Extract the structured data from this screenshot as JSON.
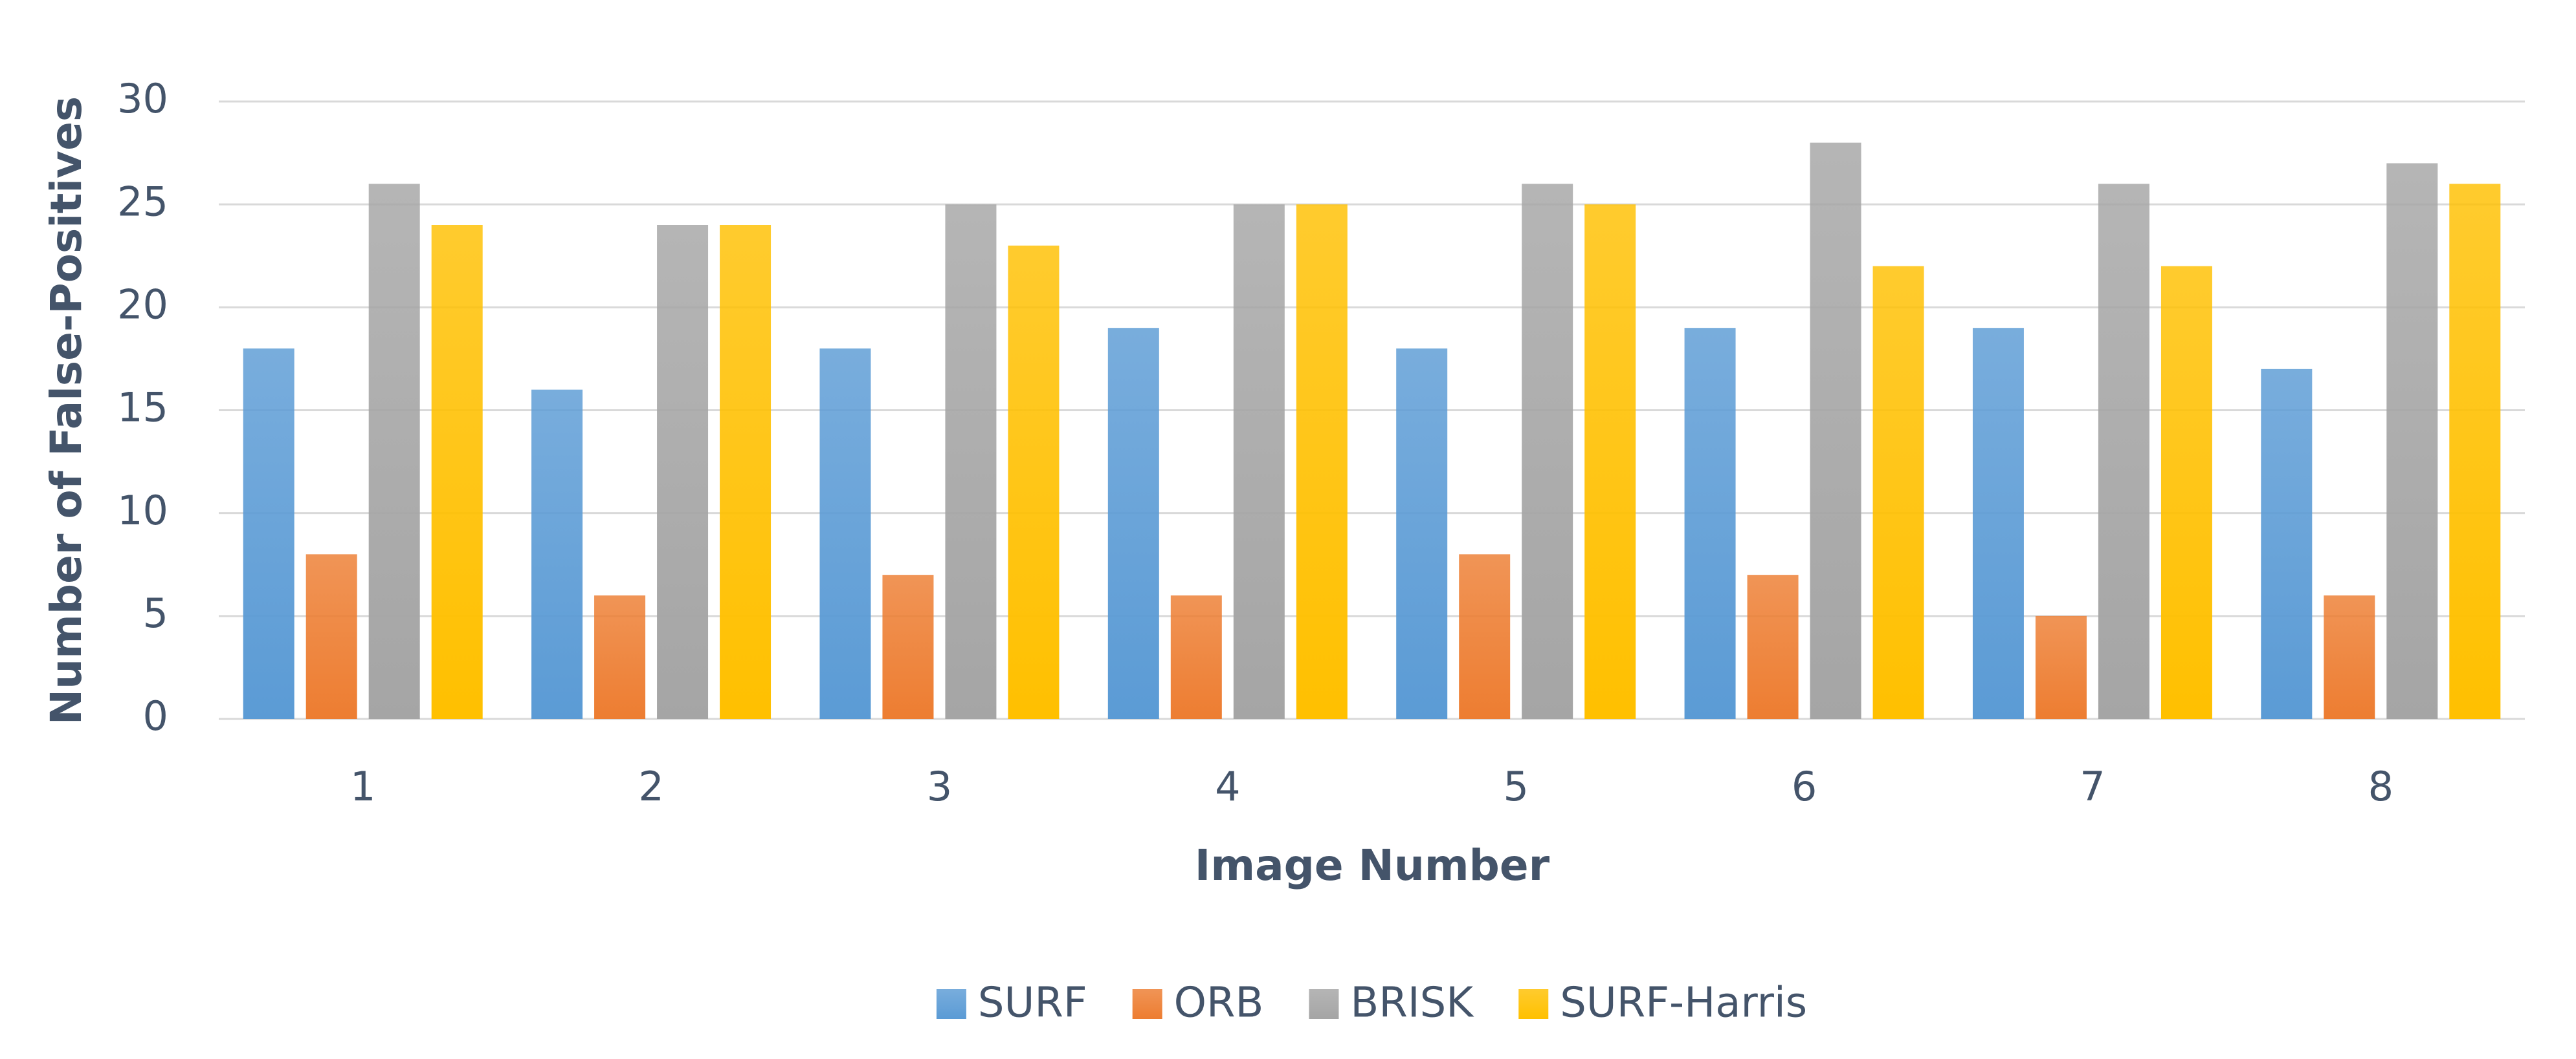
{
  "chart_data": {
    "type": "bar",
    "x_label": "Image Number",
    "y_label": "Number of False-Positives",
    "categories": [
      "1",
      "2",
      "3",
      "4",
      "5",
      "6",
      "7",
      "8"
    ],
    "series": [
      {
        "name": "SURF",
        "color": "#5b9bd5",
        "values": [
          18,
          16,
          18,
          19,
          18,
          19,
          19,
          17
        ]
      },
      {
        "name": "ORB",
        "color": "#ed7d31",
        "values": [
          8,
          6,
          7,
          6,
          8,
          7,
          5,
          6
        ]
      },
      {
        "name": "BRISK",
        "color": "#a5a5a5",
        "values": [
          26,
          24,
          25,
          25,
          26,
          28,
          26,
          27
        ]
      },
      {
        "name": "SURF-Harris",
        "color": "#ffc000",
        "values": [
          24,
          24,
          23,
          25,
          25,
          22,
          22,
          26
        ]
      }
    ],
    "ylim": [
      0,
      30
    ],
    "yticks": [
      0,
      5,
      10,
      15,
      20,
      25,
      30
    ],
    "grid": true,
    "legend": "bottom"
  }
}
